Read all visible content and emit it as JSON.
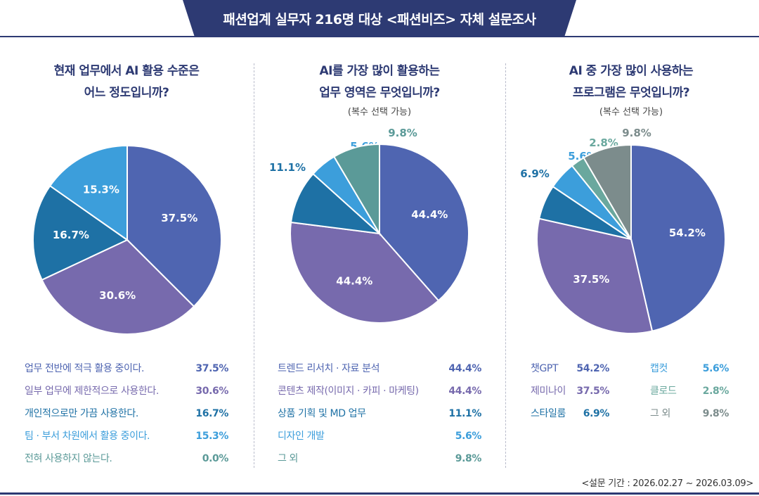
{
  "banner": "패션업계 실무자 216명 대상 <패션비즈> 자체 설문조사",
  "footnote": "<설문 기간 : 2026.02.27 ~ 2026.03.09>",
  "colors": {
    "navy": "#2d3a73",
    "blue": "#4f65b1",
    "purple": "#776aad",
    "teal": "#1e71a5",
    "sky": "#3c9edb",
    "aqua": "#2f8f95",
    "greenish": "#5b9a98",
    "gray": "#7c8c8c",
    "mint": "#6aa89e"
  },
  "chart_data": [
    {
      "type": "pie",
      "title_lines": [
        "현재 업무에서 AI 활용 수준은",
        "어느 정도입니까?"
      ],
      "note": "",
      "slices": [
        {
          "label": "업무 전반에 적극 활용 중이다.",
          "value": 37.5,
          "display": "37.5%",
          "color": "#4f65b1"
        },
        {
          "label": "일부 업무에 제한적으로 사용한다.",
          "value": 30.6,
          "display": "30.6%",
          "color": "#776aad"
        },
        {
          "label": "개인적으로만 가끔 사용한다.",
          "value": 16.7,
          "display": "16.7%",
          "color": "#1e71a5"
        },
        {
          "label": "팀 · 부서 차원에서 활용 중이다.",
          "value": 15.3,
          "display": "15.3%",
          "color": "#3c9edb"
        },
        {
          "label": "전혀 사용하지 않는다.",
          "value": 0.0,
          "display": "0.0%",
          "color": "#5b9a98"
        }
      ]
    },
    {
      "type": "pie",
      "title_lines": [
        "AI를 가장 많이 활용하는",
        "업무 영역은 무엇입니까?"
      ],
      "note": "(복수 선택 가능)",
      "slices": [
        {
          "label": "트렌드 리서치 · 자료 분석",
          "value": 44.4,
          "display": "44.4%",
          "color": "#4f65b1"
        },
        {
          "label": "콘텐츠 제작(이미지 · 카피 · 마케팅)",
          "value": 44.4,
          "display": "44.4%",
          "color": "#776aad"
        },
        {
          "label": "상품 기획 및 MD 업무",
          "value": 11.1,
          "display": "11.1%",
          "color": "#1e71a5"
        },
        {
          "label": "디자인 개발",
          "value": 5.6,
          "display": "5.6%",
          "color": "#3c9edb"
        },
        {
          "label": "그 외",
          "value": 9.8,
          "display": "9.8%",
          "color": "#5b9a98"
        }
      ]
    },
    {
      "type": "pie",
      "title_lines": [
        "AI 중 가장 많이 사용하는",
        "프로그램은 무엇입니까?"
      ],
      "note": "(복수 선택 가능)",
      "slices": [
        {
          "label": "챗GPT",
          "value": 54.2,
          "display": "54.2%",
          "color": "#4f65b1"
        },
        {
          "label": "제미나이",
          "value": 37.5,
          "display": "37.5%",
          "color": "#776aad"
        },
        {
          "label": "스타일룸",
          "value": 6.9,
          "display": "6.9%",
          "color": "#1e71a5"
        },
        {
          "label": "캡컷",
          "value": 5.6,
          "display": "5.6%",
          "color": "#3c9edb"
        },
        {
          "label": "클로드",
          "value": 2.8,
          "display": "2.8%",
          "color": "#6aa89e"
        },
        {
          "label": "그 외",
          "value": 9.8,
          "display": "9.8%",
          "color": "#7c8c8c"
        }
      ]
    }
  ]
}
